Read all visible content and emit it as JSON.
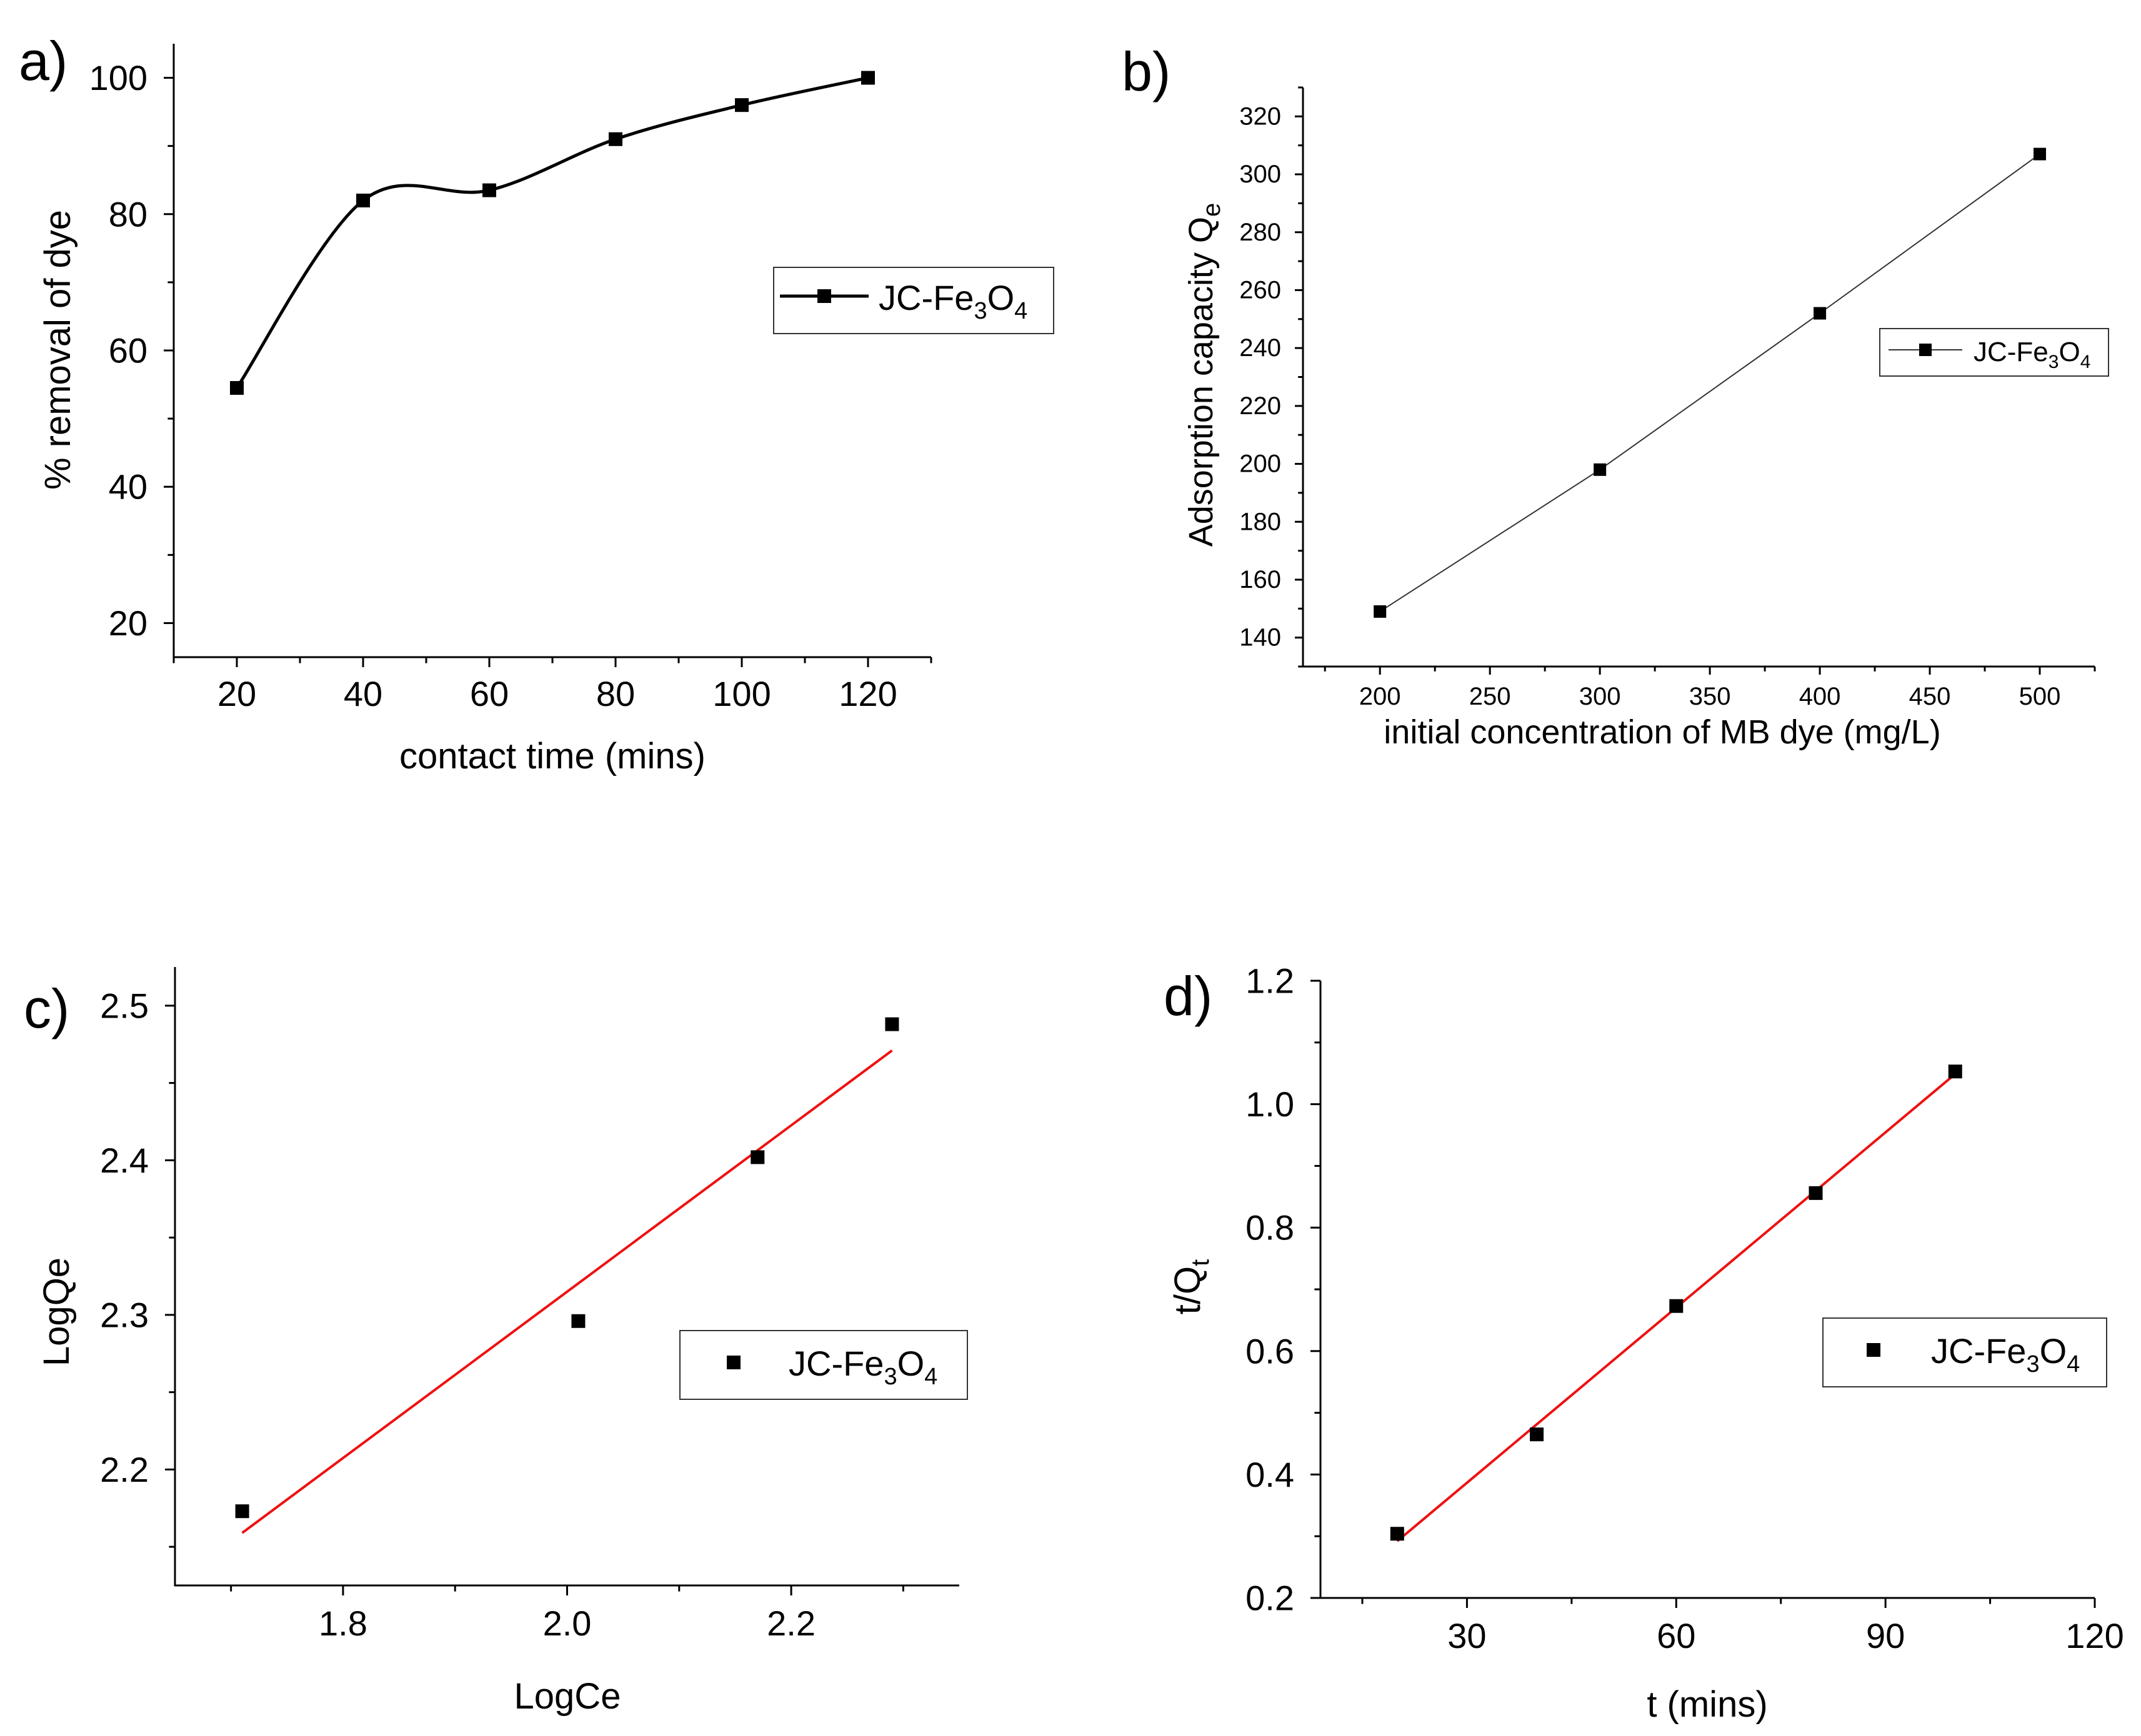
{
  "chart_data": [
    {
      "panel_label": "a)",
      "type": "line",
      "line_style": "smooth-spline",
      "x": [
        20,
        40,
        60,
        80,
        100,
        120
      ],
      "values": [
        54.5,
        82,
        83.5,
        91,
        96,
        100
      ],
      "xlabel": "contact time (mins)",
      "ylabel": "% removal of dye",
      "xlim": [
        10,
        130
      ],
      "ylim": [
        15,
        105
      ],
      "xticks": [
        20,
        40,
        60,
        80,
        100,
        120
      ],
      "yticks": [
        20,
        40,
        60,
        80,
        100
      ],
      "legend": {
        "label": "JC-Fe",
        "sub1": "3",
        "mid": "O",
        "sub2": "4",
        "position": "right"
      }
    },
    {
      "panel_label": "b)",
      "type": "line",
      "line_style": "straight",
      "x": [
        200,
        300,
        400,
        500
      ],
      "values": [
        149,
        198,
        252,
        307
      ],
      "xlabel": "initial concentration of MB dye (mg/L)",
      "ylabel": "Adsorption capacity Q",
      "ylabel_sub": "e",
      "xlim": [
        165,
        525
      ],
      "ylim": [
        130,
        330
      ],
      "xticks": [
        200,
        250,
        300,
        350,
        400,
        450,
        500
      ],
      "yticks": [
        140,
        160,
        180,
        200,
        220,
        240,
        260,
        280,
        300,
        320
      ],
      "legend": {
        "label": "JC-Fe",
        "sub1": "3",
        "mid": "O",
        "sub2": "4",
        "position": "right"
      }
    },
    {
      "panel_label": "c)",
      "type": "scatter",
      "x": [
        1.71,
        2.01,
        2.17,
        2.29
      ],
      "values": [
        2.173,
        2.296,
        2.402,
        2.488
      ],
      "fit": {
        "x": [
          1.71,
          2.29
        ],
        "y": [
          2.159,
          2.471
        ],
        "color": "#ee1111"
      },
      "xlabel": "LogCe",
      "ylabel": "LogQe",
      "xlim": [
        1.65,
        2.35
      ],
      "ylim": [
        2.125,
        2.525
      ],
      "xticks": [
        1.8,
        2.0,
        2.2
      ],
      "xtick_labels": [
        "1.8",
        "2.0",
        "2.2"
      ],
      "yticks": [
        2.2,
        2.3,
        2.4,
        2.5
      ],
      "ytick_labels": [
        "2.2",
        "2.3",
        "2.4",
        "2.5"
      ],
      "legend": {
        "label": "JC-Fe",
        "sub1": "3",
        "mid": "O",
        "sub2": "4",
        "position": "right"
      }
    },
    {
      "panel_label": "d)",
      "type": "scatter",
      "x": [
        20,
        40,
        60,
        80,
        100
      ],
      "values": [
        0.304,
        0.465,
        0.673,
        0.856,
        1.053
      ],
      "fit": {
        "x": [
          20,
          100
        ],
        "y": [
          0.292,
          1.049
        ],
        "color": "#ee1111"
      },
      "xlabel": "t (mins)",
      "ylabel": "t/Q",
      "ylabel_sub": "t",
      "xlim": [
        9,
        120
      ],
      "ylim": [
        0.2,
        1.2
      ],
      "xticks": [
        30,
        60,
        90,
        120
      ],
      "xtick_labels": [
        "30",
        "60",
        "90",
        "120"
      ],
      "yticks": [
        0.2,
        0.4,
        0.6,
        0.8,
        1.0,
        1.2
      ],
      "ytick_labels": [
        "0.2",
        "0.4",
        "0.6",
        "0.8",
        "1.0",
        "1.2"
      ],
      "legend": {
        "label": "JC-Fe",
        "sub1": "3",
        "mid": "O",
        "sub2": "4",
        "position": "right"
      }
    }
  ]
}
